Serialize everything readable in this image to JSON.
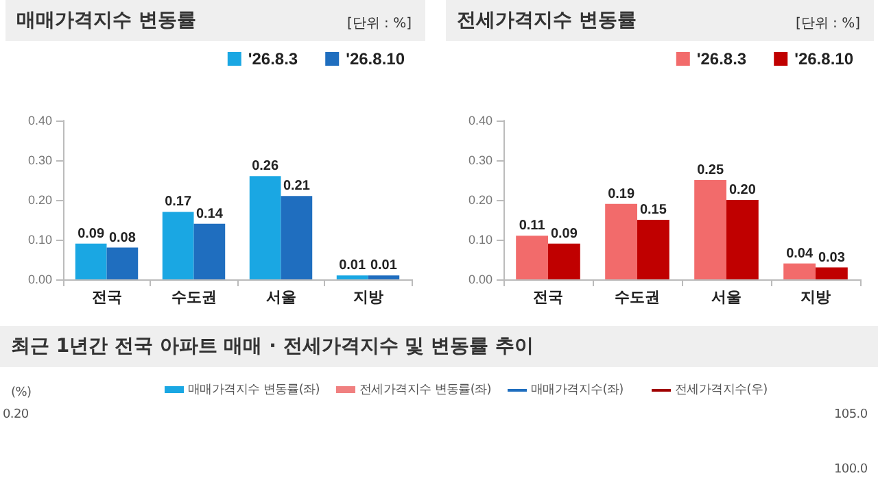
{
  "chart_data": [
    {
      "type": "bar",
      "title": "매매가격지수 변동률",
      "annotations": [
        "[단위 : %]"
      ],
      "categories": [
        "전국",
        "수도권",
        "서울",
        "지방"
      ],
      "series": [
        {
          "name": "'26.8.3",
          "color": "#1aa7e3",
          "values": [
            0.09,
            0.17,
            0.26,
            0.01
          ],
          "value_labels": [
            "0.09",
            "0.17",
            "0.26",
            "0.01"
          ]
        },
        {
          "name": "'26.8.10",
          "color": "#1f6ebf",
          "values": [
            0.08,
            0.14,
            0.21,
            0.01
          ],
          "value_labels": [
            "0.08",
            "0.14",
            "0.21",
            "0.01"
          ]
        }
      ],
      "ylim": [
        0,
        0.4
      ],
      "yticks": [
        {
          "value": 0,
          "label": "0.00"
        },
        {
          "value": 0.1,
          "label": "0.10"
        },
        {
          "value": 0.2,
          "label": "0.20"
        },
        {
          "value": 0.3,
          "label": "0.30"
        },
        {
          "value": 0.4,
          "label": "0.40"
        }
      ],
      "grid": false,
      "legend": "top right"
    },
    {
      "type": "bar",
      "title": "전세가격지수 변동률",
      "annotations": [
        "[단위 : %]"
      ],
      "categories": [
        "전국",
        "수도권",
        "서울",
        "지방"
      ],
      "series": [
        {
          "name": "'26.8.3",
          "color": "#f26b6b",
          "values": [
            0.11,
            0.19,
            0.25,
            0.04
          ],
          "value_labels": [
            "0.11",
            "0.19",
            "0.25",
            "0.04"
          ]
        },
        {
          "name": "'26.8.10",
          "color": "#c00000",
          "values": [
            0.09,
            0.15,
            0.2,
            0.03
          ],
          "value_labels": [
            "0.09",
            "0.15",
            "0.20",
            "0.03"
          ]
        }
      ],
      "ylim": [
        0,
        0.4
      ],
      "yticks": [
        {
          "value": 0,
          "label": "0.00"
        },
        {
          "value": 0.1,
          "label": "0.10"
        },
        {
          "value": 0.2,
          "label": "0.20"
        },
        {
          "value": 0.3,
          "label": "0.30"
        },
        {
          "value": 0.4,
          "label": "0.40"
        }
      ],
      "grid": false,
      "legend": "top right"
    },
    {
      "type": "other",
      "title": "최근 1년간 전국 아파트 매매 · 전세가격지수 및 변동률 추이",
      "ylabel": "(%)",
      "annotations": [
        "매매가격지수 변동률(좌)",
        "전세가격지수 변동률(좌)",
        "매매가격지수(좌)",
        "전세가격지수(우)",
        "0.20",
        "105.0",
        "100.0"
      ]
    }
  ]
}
